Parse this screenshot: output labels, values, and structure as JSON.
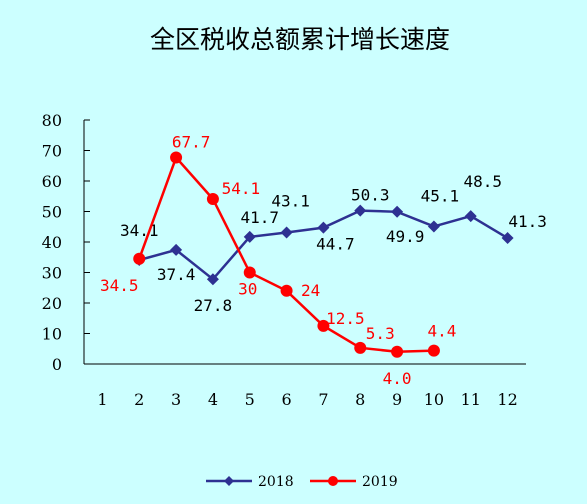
{
  "chart_data": {
    "type": "line",
    "title": "全区税收总额累计增长速度",
    "xlabel": "",
    "ylabel": "",
    "categories": [
      "1",
      "2",
      "3",
      "4",
      "5",
      "6",
      "7",
      "8",
      "9",
      "10",
      "11",
      "12"
    ],
    "ylim": [
      0,
      80
    ],
    "yticks": [
      "0",
      "10",
      "20",
      "30",
      "40",
      "50",
      "60",
      "70",
      "80"
    ],
    "grid": false,
    "legend": "bottom",
    "series": [
      {
        "name": "2018",
        "color": "#2E3192",
        "marker": "diamond",
        "values": [
          null,
          34.1,
          37.4,
          27.8,
          41.7,
          43.1,
          44.7,
          50.3,
          49.9,
          45.1,
          48.5,
          41.3
        ],
        "labels": [
          null,
          "34.1",
          "37.4",
          "27.8",
          "41.7",
          "43.1",
          "44.7",
          "50.3",
          "49.9",
          "45.1",
          "48.5",
          "41.3"
        ]
      },
      {
        "name": "2019",
        "color": "#FF0000",
        "marker": "circle",
        "values": [
          null,
          34.5,
          67.7,
          54.1,
          30,
          24,
          12.5,
          5.3,
          4.0,
          4.4,
          null,
          null
        ],
        "labels": [
          null,
          "34.5",
          "67.7",
          "54.1",
          "30",
          "24",
          "12.5",
          "5.3",
          "4.0",
          "4.4",
          null,
          null
        ]
      }
    ]
  }
}
